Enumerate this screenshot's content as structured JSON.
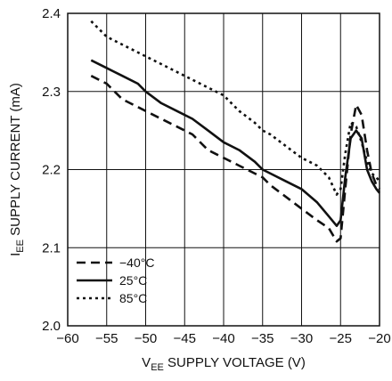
{
  "chart_data": {
    "type": "line",
    "xlabel": {
      "main": "V",
      "sub": "EE",
      "rest": " SUPPLY VOLTAGE (V)"
    },
    "ylabel": {
      "main": "I",
      "sub": "EE",
      "rest": " SUPPLY CURRENT (mA)"
    },
    "xlim": [
      -60,
      -20
    ],
    "ylim": [
      2.0,
      2.4
    ],
    "grid": true,
    "legend_position": "bottom-left",
    "x_ticks": [
      -60,
      -55,
      -50,
      -45,
      -40,
      -35,
      -30,
      -25,
      -20
    ],
    "x_tick_labels": [
      "−60",
      "−55",
      "−50",
      "−45",
      "−40",
      "−35",
      "−30",
      "−25",
      "−20"
    ],
    "y_ticks": [
      2.0,
      2.1,
      2.2,
      2.3,
      2.4
    ],
    "y_tick_labels": [
      "2.0",
      "2.1",
      "2.2",
      "2.3",
      "2.4"
    ],
    "series": [
      {
        "name": "−40°C",
        "style": "dashed",
        "x": [
          -57,
          -55,
          -53,
          -51,
          -50,
          -48,
          -46,
          -44,
          -42,
          -40,
          -38,
          -36,
          -35,
          -34,
          -32,
          -30,
          -28,
          -26.5,
          -25.5,
          -25,
          -24.4,
          -23.7,
          -23,
          -22.3,
          -21.6,
          -21,
          -20.4,
          -20
        ],
        "y": [
          2.32,
          2.31,
          2.29,
          2.28,
          2.275,
          2.265,
          2.255,
          2.245,
          2.225,
          2.215,
          2.205,
          2.195,
          2.19,
          2.18,
          2.165,
          2.15,
          2.135,
          2.125,
          2.108,
          2.112,
          2.175,
          2.245,
          2.283,
          2.27,
          2.225,
          2.195,
          2.18,
          2.175
        ]
      },
      {
        "name": "25°C",
        "style": "solid",
        "x": [
          -57,
          -55,
          -53,
          -51,
          -50,
          -48,
          -46,
          -44,
          -42,
          -40,
          -38,
          -36,
          -35,
          -34,
          -32,
          -30,
          -28,
          -26.5,
          -25.5,
          -25,
          -24.4,
          -23.7,
          -23,
          -22.3,
          -21.6,
          -21,
          -20.4,
          -20
        ],
        "y": [
          2.34,
          2.33,
          2.32,
          2.31,
          2.3,
          2.285,
          2.275,
          2.265,
          2.25,
          2.235,
          2.225,
          2.21,
          2.2,
          2.195,
          2.185,
          2.175,
          2.158,
          2.14,
          2.128,
          2.135,
          2.19,
          2.24,
          2.25,
          2.24,
          2.2,
          2.185,
          2.175,
          2.17
        ]
      },
      {
        "name": "85°C",
        "style": "dotted",
        "x": [
          -57,
          -55,
          -53,
          -51,
          -50,
          -48,
          -46,
          -44,
          -42,
          -40,
          -38,
          -36,
          -35,
          -34,
          -32,
          -30,
          -28,
          -26.5,
          -25.5,
          -25,
          -24.4,
          -23.7,
          -23,
          -22.3,
          -21.6,
          -21,
          -20.4,
          -20
        ],
        "y": [
          2.39,
          2.37,
          2.36,
          2.35,
          2.345,
          2.335,
          2.325,
          2.315,
          2.305,
          2.295,
          2.275,
          2.26,
          2.25,
          2.245,
          2.23,
          2.215,
          2.205,
          2.19,
          2.168,
          2.175,
          2.22,
          2.26,
          2.255,
          2.235,
          2.21,
          2.195,
          2.19,
          2.185
        ]
      }
    ]
  }
}
